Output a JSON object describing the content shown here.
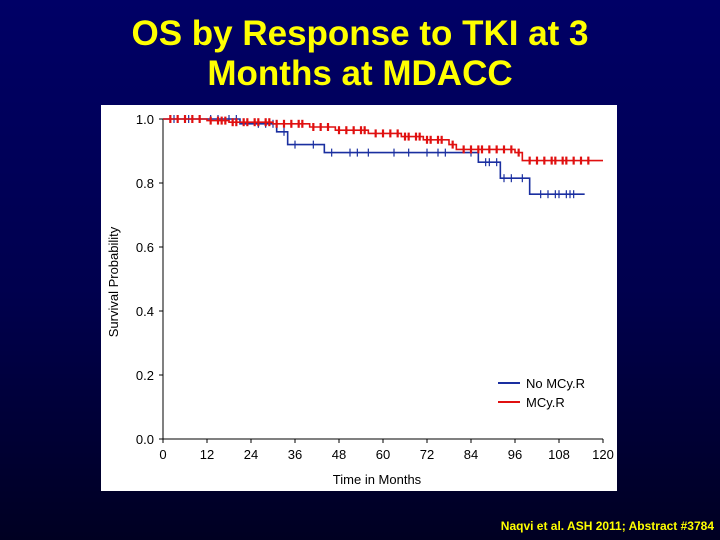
{
  "slide": {
    "title_line1": "OS by Response to TKI at 3",
    "title_line2": "Months at MDACC",
    "citation": "Naqvi et al. ASH 2011; Abstract #3784"
  },
  "colors": {
    "title": "#ffff00",
    "series_no_mcyr": "#1a2fa0",
    "series_mcyr": "#e01010"
  },
  "chart_data": {
    "type": "line",
    "title": "",
    "xlabel": "Time in Months",
    "ylabel": "Survival Probability",
    "xlim": [
      0,
      120
    ],
    "ylim": [
      0,
      1.0
    ],
    "x_ticks": [
      0,
      12,
      24,
      36,
      48,
      60,
      72,
      84,
      96,
      108,
      120
    ],
    "x_tick_labels": [
      "0",
      "12",
      "24",
      "36",
      "48",
      "60",
      "72",
      "84",
      "96",
      "108",
      "120"
    ],
    "y_ticks": [
      0.0,
      0.2,
      0.4,
      0.6,
      0.8,
      1.0
    ],
    "y_tick_labels": [
      "0.0",
      "0.2",
      "0.4",
      "0.6",
      "0.8",
      "1.0"
    ],
    "legend_position": "bottom-right",
    "grid": false,
    "series": [
      {
        "name": "No MCy.R",
        "color": "#1a2fa0",
        "steps": [
          [
            0,
            1.0
          ],
          [
            21,
            0.985
          ],
          [
            31,
            0.96
          ],
          [
            34,
            0.92
          ],
          [
            44,
            0.895
          ],
          [
            86,
            0.865
          ],
          [
            92,
            0.815
          ],
          [
            100,
            0.765
          ],
          [
            115,
            0.765
          ]
        ],
        "censor_x": [
          3,
          7,
          10,
          13,
          15,
          18,
          20,
          26,
          28,
          30,
          33,
          36,
          41,
          46,
          51,
          53,
          56,
          63,
          67,
          72,
          75,
          77,
          84,
          88,
          89,
          91,
          93,
          95,
          98,
          103,
          105,
          107,
          108,
          110,
          111,
          112
        ]
      },
      {
        "name": "MCy.R",
        "color": "#e01010",
        "steps": [
          [
            0,
            1.0
          ],
          [
            12,
            0.995
          ],
          [
            18,
            0.99
          ],
          [
            30,
            0.985
          ],
          [
            40,
            0.975
          ],
          [
            47,
            0.965
          ],
          [
            56,
            0.955
          ],
          [
            65,
            0.945
          ],
          [
            71,
            0.935
          ],
          [
            78,
            0.92
          ],
          [
            80,
            0.905
          ],
          [
            96,
            0.895
          ],
          [
            98,
            0.87
          ],
          [
            120,
            0.87
          ]
        ],
        "censor_x": [
          2,
          4,
          6,
          8,
          10,
          13,
          15,
          16,
          17,
          19,
          20,
          22,
          23,
          25,
          26,
          28,
          29,
          31,
          33,
          35,
          37,
          38,
          41,
          43,
          45,
          48,
          50,
          52,
          54,
          55,
          58,
          60,
          62,
          64,
          66,
          67,
          69,
          70,
          72,
          73,
          75,
          76,
          79,
          82,
          84,
          86,
          87,
          89,
          91,
          93,
          95,
          97,
          100,
          102,
          104,
          106,
          107,
          109,
          110,
          112,
          114,
          116
        ]
      }
    ]
  }
}
